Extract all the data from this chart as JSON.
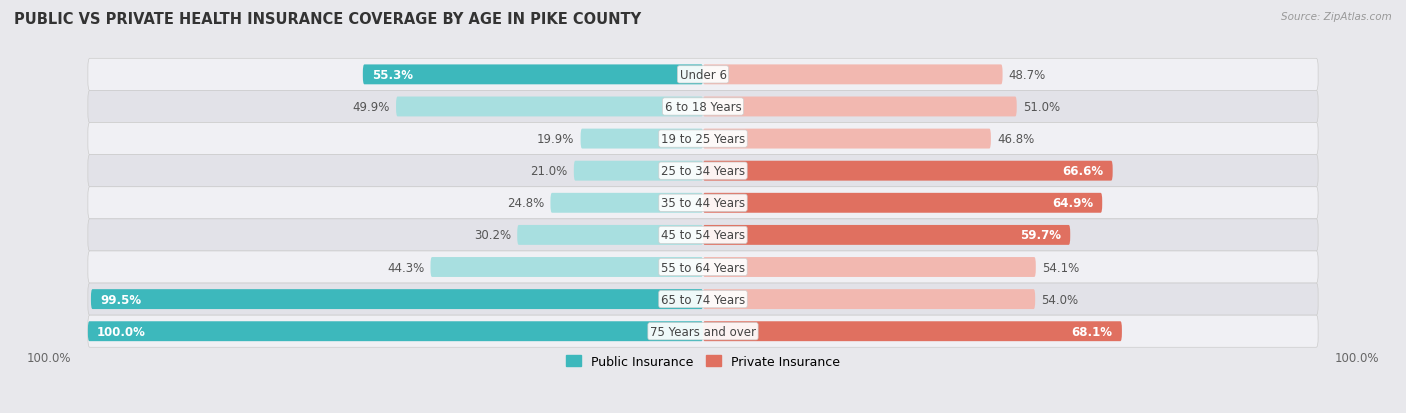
{
  "title": "PUBLIC VS PRIVATE HEALTH INSURANCE COVERAGE BY AGE IN PIKE COUNTY",
  "source": "Source: ZipAtlas.com",
  "categories": [
    "Under 6",
    "6 to 18 Years",
    "19 to 25 Years",
    "25 to 34 Years",
    "35 to 44 Years",
    "45 to 54 Years",
    "55 to 64 Years",
    "65 to 74 Years",
    "75 Years and over"
  ],
  "public_values": [
    55.3,
    49.9,
    19.9,
    21.0,
    24.8,
    30.2,
    44.3,
    99.5,
    100.0
  ],
  "private_values": [
    48.7,
    51.0,
    46.8,
    66.6,
    64.9,
    59.7,
    54.1,
    54.0,
    68.1
  ],
  "public_color_high": "#3db8bc",
  "public_color_low": "#a8dfe0",
  "private_color_high": "#e07060",
  "private_color_low": "#f2b8b0",
  "bg_color": "#e8e8ec",
  "row_bg_light": "#f0f0f4",
  "row_bg_dark": "#e2e2e8",
  "title_fontsize": 10.5,
  "label_fontsize": 8.5,
  "value_fontsize": 8.5,
  "max_value": 100.0,
  "legend_label_public": "Public Insurance",
  "legend_label_private": "Private Insurance",
  "public_threshold": 50,
  "private_threshold": 55
}
